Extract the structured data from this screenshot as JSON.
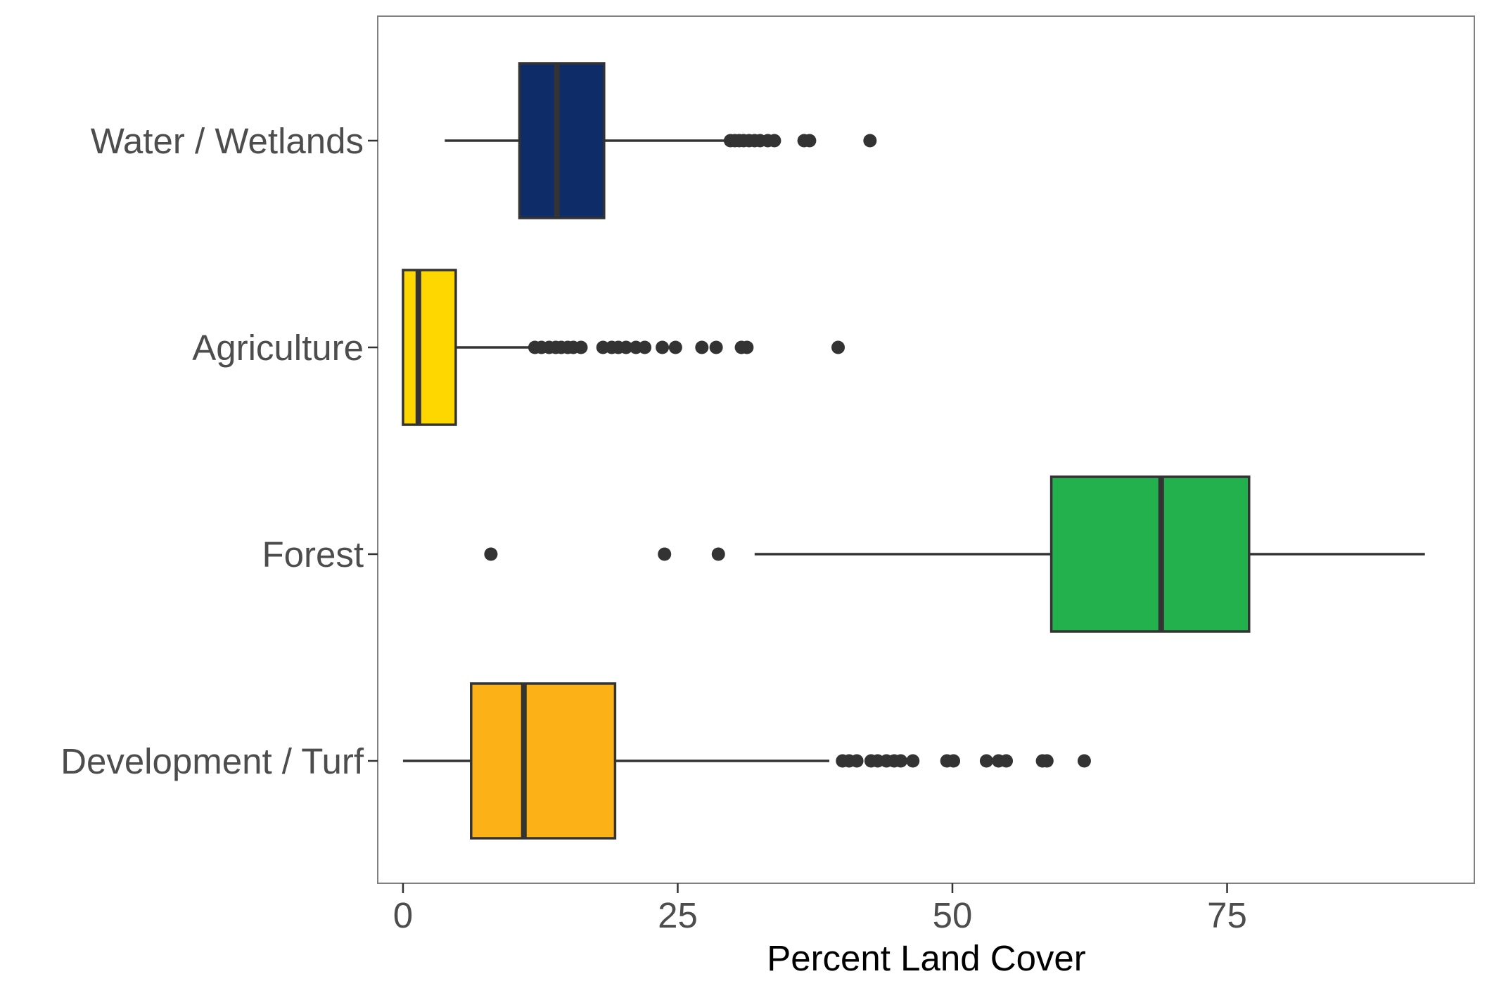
{
  "chart_data": {
    "type": "boxplot",
    "orientation": "horizontal",
    "title": "",
    "xlabel": "Percent Land Cover",
    "ylabel": "",
    "xlim": [
      -2.3,
      97.5
    ],
    "x_ticks": [
      0,
      25,
      50,
      75
    ],
    "x_tick_labels": [
      "0",
      "25",
      "50",
      "75"
    ],
    "grid": false,
    "legend": "none",
    "categories": [
      "Water / Wetlands",
      "Agriculture",
      "Forest",
      "Development / Turf"
    ],
    "series": [
      {
        "category": "Water / Wetlands",
        "color": "#0e2c68",
        "whisker_low": 3.8,
        "q1": 10.6,
        "median": 14.0,
        "q3": 18.3,
        "whisker_high": 29.5,
        "outliers": [
          29.8,
          30.2,
          30.6,
          31.0,
          31.5,
          32.0,
          32.5,
          33.2,
          33.8,
          36.5,
          37.0,
          42.5
        ]
      },
      {
        "category": "Agriculture",
        "color": "#ffd700",
        "whisker_low": 0.0,
        "q1": 0.0,
        "median": 1.4,
        "q3": 4.8,
        "whisker_high": 11.8,
        "outliers": [
          12.0,
          12.6,
          13.3,
          13.9,
          14.4,
          15.0,
          15.5,
          16.2,
          18.2,
          19.0,
          19.6,
          20.3,
          21.2,
          22.0,
          23.6,
          24.8,
          27.2,
          28.5,
          30.8,
          31.3,
          39.6
        ]
      },
      {
        "category": "Forest",
        "color": "#22b14c",
        "whisker_low": 32.0,
        "q1": 59.0,
        "median": 69.0,
        "q3": 77.0,
        "whisker_high": 93.0,
        "outliers": [
          8.0,
          23.8,
          28.7
        ]
      },
      {
        "category": "Development / Turf",
        "color": "#fcb116",
        "whisker_low": 0.0,
        "q1": 6.2,
        "median": 11.0,
        "q3": 19.3,
        "whisker_high": 38.8,
        "outliers": [
          40.0,
          40.6,
          41.3,
          42.6,
          43.2,
          44.0,
          44.7,
          45.3,
          46.4,
          49.5,
          50.1,
          53.1,
          54.2,
          54.9,
          58.2,
          58.6,
          62.0
        ]
      }
    ]
  }
}
